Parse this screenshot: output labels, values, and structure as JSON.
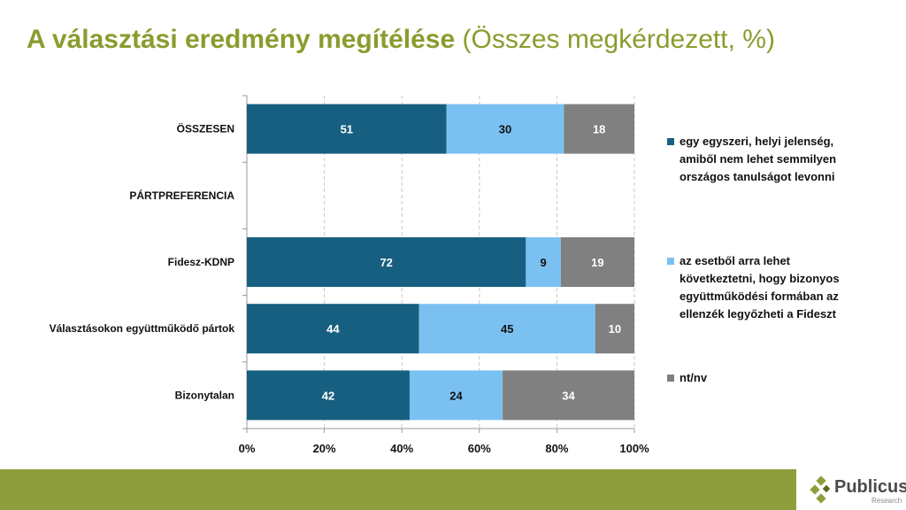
{
  "title": {
    "bold": "A választási eredmény megítélése",
    "normal": " (Összes megkérdezett, %)"
  },
  "chart_data": {
    "type": "bar",
    "orientation": "horizontal",
    "stacked": "percent",
    "categories": [
      "ÖSSZESEN",
      "PÁRTPREFERENCIA",
      "Fidesz-KDNP",
      "Választásokon együttműködő pártok",
      "Bizonytalan"
    ],
    "series": [
      {
        "name": "egy egyszeri, helyi jelenség, amiből nem lehet semmilyen országos tanulságot levonni",
        "color": "#175f81",
        "label_color": "#ffffff",
        "values": [
          51,
          null,
          72,
          44,
          42
        ]
      },
      {
        "name": "az esetből arra lehet következtetni, hogy bizonyos együttműködési formában az ellenzék legyőzheti a Fideszt",
        "color": "#7ac1f2",
        "label_color": "#111111",
        "values": [
          30,
          null,
          9,
          45,
          24
        ]
      },
      {
        "name": "nt/nv",
        "color": "#808080",
        "label_color": "#ffffff",
        "values": [
          18,
          null,
          19,
          10,
          34
        ]
      }
    ],
    "xticks": [
      "0%",
      "20%",
      "40%",
      "60%",
      "80%",
      "100%"
    ],
    "xlim": [
      0,
      100
    ],
    "grid": true,
    "legend": "right"
  },
  "footer": {
    "brand": "Publicus",
    "sub": "Research"
  }
}
